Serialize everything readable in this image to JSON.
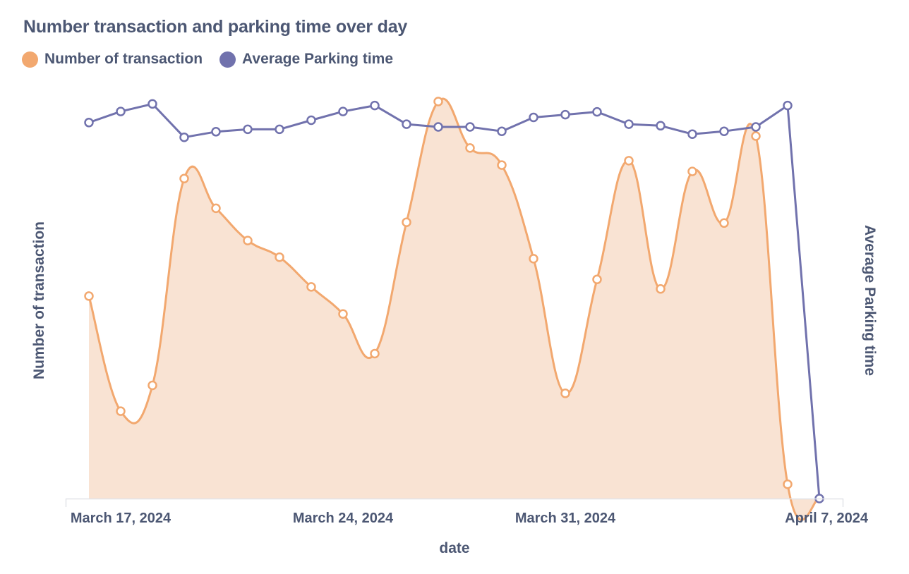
{
  "chart": {
    "title": "Number transaction and parking time over day"
  },
  "legend": [
    {
      "label": "Number of transaction",
      "color": "#f2a86f"
    },
    {
      "label": "Average Parking time",
      "color": "#7172ad"
    }
  ],
  "chart_data": {
    "type": "line",
    "title": "Number transaction and parking time over day",
    "xlabel": "date",
    "ylabel_left": "Number of transaction",
    "ylabel_right": "Average Parking time",
    "x": [
      "2024-03-16",
      "2024-03-17",
      "2024-03-18",
      "2024-03-19",
      "2024-03-20",
      "2024-03-21",
      "2024-03-22",
      "2024-03-23",
      "2024-03-24",
      "2024-03-25",
      "2024-03-26",
      "2024-03-27",
      "2024-03-28",
      "2024-03-29",
      "2024-03-30",
      "2024-03-31",
      "2024-04-01",
      "2024-04-02",
      "2024-04-03",
      "2024-04-04",
      "2024-04-05",
      "2024-04-06",
      "2024-04-07",
      "2024-04-08"
    ],
    "x_ticks": [
      "March 17, 2024",
      "March 24, 2024",
      "March 31, 2024",
      "April 7, 2024"
    ],
    "x_tick_dates": [
      "2024-03-17",
      "2024-03-24",
      "2024-03-31",
      "2024-04-07"
    ],
    "y_axis_labels_visible": false,
    "grid": false,
    "legend_position": "top-left",
    "series": [
      {
        "name": "Number of transaction",
        "color": "#f2a86f",
        "fill": "#f9e3d3",
        "area": true,
        "smooth": true,
        "axis": "left",
        "ylim": [
          0,
          100
        ],
        "values": [
          51,
          22,
          28.5,
          80.6,
          73.1,
          65,
          60.8,
          53.3,
          46.5,
          36.5,
          69.6,
          100,
          88.3,
          84,
          60.4,
          26.5,
          55.2,
          85.1,
          52.8,
          82.4,
          69.4,
          91.3,
          3.6,
          null
        ]
      },
      {
        "name": "Average Parking time",
        "color": "#7172ad",
        "area": false,
        "smooth": false,
        "axis": "right",
        "ylim": [
          0,
          100
        ],
        "values": [
          94.7,
          97.5,
          99.4,
          91,
          92.4,
          93,
          93,
          95.3,
          97.5,
          99,
          94.3,
          93.6,
          93.6,
          92.5,
          96,
          96.7,
          97.4,
          94.3,
          93.9,
          91.8,
          92.5,
          93.6,
          99,
          0
        ]
      }
    ]
  }
}
